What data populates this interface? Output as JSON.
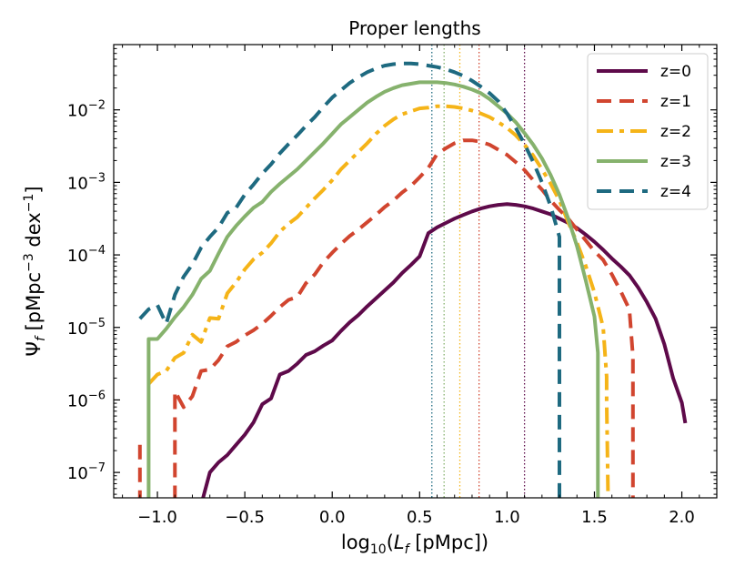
{
  "chart_data": {
    "type": "line",
    "title": "Proper lengths",
    "xlabel": "log10(Lf [pMpc])",
    "ylabel": "Ψf [pMpc−3 dex−1]",
    "xlim": [
      -1.25,
      2.2
    ],
    "ylim_log10": [
      -7.35,
      -1.1
    ],
    "x_ticks": [
      {
        "value": -1.0,
        "label": "−1.0"
      },
      {
        "value": -0.5,
        "label": "−0.5"
      },
      {
        "value": 0.0,
        "label": "0.0"
      },
      {
        "value": 0.5,
        "label": "0.5"
      },
      {
        "value": 1.0,
        "label": "1.0"
      },
      {
        "value": 1.5,
        "label": "1.5"
      },
      {
        "value": 2.0,
        "label": "2.0"
      }
    ],
    "y_ticks": [
      {
        "exp": -2,
        "label": "10−2"
      },
      {
        "exp": -3,
        "label": "10−3"
      },
      {
        "exp": -4,
        "label": "10−4"
      },
      {
        "exp": -5,
        "label": "10−5"
      },
      {
        "exp": -6,
        "label": "10−6"
      },
      {
        "exp": -7,
        "label": "10−7"
      }
    ],
    "legend_position": "top-right",
    "series": [
      {
        "name": "z=0",
        "color": "#5e0a4a",
        "style": "solid",
        "marker_x": 1.1,
        "points": [
          [
            -0.75,
            -7.7
          ],
          [
            -0.75,
            -7.45
          ],
          [
            -0.7,
            -7.0
          ],
          [
            -0.65,
            -6.86
          ],
          [
            -0.6,
            -6.76
          ],
          [
            -0.55,
            -6.62
          ],
          [
            -0.5,
            -6.48
          ],
          [
            -0.45,
            -6.31
          ],
          [
            -0.4,
            -6.06
          ],
          [
            -0.35,
            -5.98
          ],
          [
            -0.3,
            -5.65
          ],
          [
            -0.25,
            -5.6
          ],
          [
            -0.2,
            -5.5
          ],
          [
            -0.15,
            -5.38
          ],
          [
            -0.1,
            -5.33
          ],
          [
            -0.05,
            -5.25
          ],
          [
            0.0,
            -5.18
          ],
          [
            0.05,
            -5.05
          ],
          [
            0.1,
            -4.93
          ],
          [
            0.15,
            -4.83
          ],
          [
            0.2,
            -4.71
          ],
          [
            0.25,
            -4.6
          ],
          [
            0.3,
            -4.49
          ],
          [
            0.35,
            -4.38
          ],
          [
            0.4,
            -4.25
          ],
          [
            0.45,
            -4.14
          ],
          [
            0.5,
            -4.02
          ],
          [
            0.55,
            -3.7
          ],
          [
            0.6,
            -3.62
          ],
          [
            0.65,
            -3.56
          ],
          [
            0.7,
            -3.5
          ],
          [
            0.75,
            -3.45
          ],
          [
            0.8,
            -3.4
          ],
          [
            0.85,
            -3.36
          ],
          [
            0.9,
            -3.33
          ],
          [
            0.95,
            -3.31
          ],
          [
            1.0,
            -3.3
          ],
          [
            1.05,
            -3.31
          ],
          [
            1.1,
            -3.33
          ],
          [
            1.15,
            -3.36
          ],
          [
            1.2,
            -3.4
          ],
          [
            1.25,
            -3.44
          ],
          [
            1.3,
            -3.5
          ],
          [
            1.35,
            -3.56
          ],
          [
            1.4,
            -3.63
          ],
          [
            1.45,
            -3.72
          ],
          [
            1.5,
            -3.82
          ],
          [
            1.55,
            -3.93
          ],
          [
            1.6,
            -4.05
          ],
          [
            1.65,
            -4.16
          ],
          [
            1.7,
            -4.28
          ],
          [
            1.75,
            -4.45
          ],
          [
            1.8,
            -4.65
          ],
          [
            1.85,
            -4.88
          ],
          [
            1.9,
            -5.23
          ],
          [
            1.95,
            -5.7
          ],
          [
            2.0,
            -6.04
          ],
          [
            2.02,
            -6.32
          ]
        ]
      },
      {
        "name": "z=1",
        "color": "#d1452f",
        "style": "dashed",
        "marker_x": 0.84,
        "points": [
          [
            -1.1,
            -6.62
          ],
          [
            -1.1,
            -7.7
          ],
          [
            -0.9,
            -7.7
          ],
          [
            -0.9,
            -5.88
          ],
          [
            -0.85,
            -6.1
          ],
          [
            -0.8,
            -5.95
          ],
          [
            -0.75,
            -5.6
          ],
          [
            -0.7,
            -5.58
          ],
          [
            -0.65,
            -5.45
          ],
          [
            -0.6,
            -5.26
          ],
          [
            -0.55,
            -5.2
          ],
          [
            -0.5,
            -5.11
          ],
          [
            -0.45,
            -5.04
          ],
          [
            -0.4,
            -4.95
          ],
          [
            -0.35,
            -4.84
          ],
          [
            -0.3,
            -4.72
          ],
          [
            -0.25,
            -4.62
          ],
          [
            -0.2,
            -4.58
          ],
          [
            -0.15,
            -4.39
          ],
          [
            -0.1,
            -4.27
          ],
          [
            -0.05,
            -4.1
          ],
          [
            0.0,
            -3.97
          ],
          [
            0.05,
            -3.85
          ],
          [
            0.1,
            -3.74
          ],
          [
            0.15,
            -3.65
          ],
          [
            0.2,
            -3.55
          ],
          [
            0.25,
            -3.45
          ],
          [
            0.3,
            -3.34
          ],
          [
            0.35,
            -3.25
          ],
          [
            0.4,
            -3.14
          ],
          [
            0.45,
            -3.05
          ],
          [
            0.5,
            -2.93
          ],
          [
            0.55,
            -2.8
          ],
          [
            0.6,
            -2.61
          ],
          [
            0.65,
            -2.53
          ],
          [
            0.7,
            -2.46
          ],
          [
            0.75,
            -2.42
          ],
          [
            0.8,
            -2.42
          ],
          [
            0.85,
            -2.44
          ],
          [
            0.9,
            -2.48
          ],
          [
            0.95,
            -2.55
          ],
          [
            1.0,
            -2.62
          ],
          [
            1.05,
            -2.72
          ],
          [
            1.1,
            -2.83
          ],
          [
            1.15,
            -2.97
          ],
          [
            1.2,
            -3.1
          ],
          [
            1.25,
            -3.25
          ],
          [
            1.3,
            -3.38
          ],
          [
            1.35,
            -3.5
          ],
          [
            1.4,
            -3.65
          ],
          [
            1.45,
            -3.8
          ],
          [
            1.5,
            -3.95
          ],
          [
            1.55,
            -4.07
          ],
          [
            1.6,
            -4.27
          ],
          [
            1.65,
            -4.5
          ],
          [
            1.7,
            -4.75
          ],
          [
            1.72,
            -5.4
          ],
          [
            1.72,
            -5.87
          ],
          [
            1.72,
            -7.7
          ]
        ]
      },
      {
        "name": "z=2",
        "color": "#f5b418",
        "style": "dashdot",
        "marker_x": 0.73,
        "points": [
          [
            -1.05,
            -5.78
          ],
          [
            -1.0,
            -5.65
          ],
          [
            -0.95,
            -5.6
          ],
          [
            -0.9,
            -5.42
          ],
          [
            -0.85,
            -5.35
          ],
          [
            -0.8,
            -5.1
          ],
          [
            -0.75,
            -5.2
          ],
          [
            -0.7,
            -4.87
          ],
          [
            -0.65,
            -4.88
          ],
          [
            -0.6,
            -4.53
          ],
          [
            -0.55,
            -4.38
          ],
          [
            -0.5,
            -4.2
          ],
          [
            -0.45,
            -4.06
          ],
          [
            -0.4,
            -3.97
          ],
          [
            -0.35,
            -3.84
          ],
          [
            -0.3,
            -3.68
          ],
          [
            -0.25,
            -3.57
          ],
          [
            -0.2,
            -3.48
          ],
          [
            -0.15,
            -3.35
          ],
          [
            -0.1,
            -3.22
          ],
          [
            -0.05,
            -3.1
          ],
          [
            0.0,
            -2.97
          ],
          [
            0.05,
            -2.82
          ],
          [
            0.1,
            -2.7
          ],
          [
            0.15,
            -2.58
          ],
          [
            0.2,
            -2.46
          ],
          [
            0.25,
            -2.33
          ],
          [
            0.3,
            -2.22
          ],
          [
            0.35,
            -2.13
          ],
          [
            0.4,
            -2.06
          ],
          [
            0.45,
            -2.02
          ],
          [
            0.5,
            -1.98
          ],
          [
            0.55,
            -1.97
          ],
          [
            0.6,
            -1.95
          ],
          [
            0.65,
            -1.95
          ],
          [
            0.7,
            -1.96
          ],
          [
            0.75,
            -1.98
          ],
          [
            0.8,
            -2.01
          ],
          [
            0.85,
            -2.05
          ],
          [
            0.9,
            -2.1
          ],
          [
            0.95,
            -2.17
          ],
          [
            1.0,
            -2.25
          ],
          [
            1.05,
            -2.35
          ],
          [
            1.1,
            -2.48
          ],
          [
            1.15,
            -2.63
          ],
          [
            1.2,
            -2.82
          ],
          [
            1.25,
            -3.02
          ],
          [
            1.3,
            -3.25
          ],
          [
            1.35,
            -3.55
          ],
          [
            1.4,
            -3.83
          ],
          [
            1.45,
            -4.15
          ],
          [
            1.5,
            -4.52
          ],
          [
            1.55,
            -5.0
          ],
          [
            1.57,
            -5.68
          ],
          [
            1.57,
            -6.0
          ],
          [
            1.58,
            -7.7
          ]
        ]
      },
      {
        "name": "z=3",
        "color": "#86b26d",
        "style": "solid",
        "marker_x": 0.64,
        "points": [
          [
            -1.05,
            -7.7
          ],
          [
            -1.05,
            -5.16
          ],
          [
            -1.0,
            -5.16
          ],
          [
            -0.95,
            -5.02
          ],
          [
            -0.9,
            -4.86
          ],
          [
            -0.85,
            -4.72
          ],
          [
            -0.8,
            -4.55
          ],
          [
            -0.75,
            -4.33
          ],
          [
            -0.7,
            -4.22
          ],
          [
            -0.65,
            -3.98
          ],
          [
            -0.6,
            -3.75
          ],
          [
            -0.55,
            -3.6
          ],
          [
            -0.5,
            -3.47
          ],
          [
            -0.45,
            -3.35
          ],
          [
            -0.4,
            -3.27
          ],
          [
            -0.35,
            -3.13
          ],
          [
            -0.3,
            -3.02
          ],
          [
            -0.25,
            -2.92
          ],
          [
            -0.2,
            -2.82
          ],
          [
            -0.15,
            -2.7
          ],
          [
            -0.1,
            -2.58
          ],
          [
            -0.05,
            -2.46
          ],
          [
            0.0,
            -2.33
          ],
          [
            0.05,
            -2.2
          ],
          [
            0.1,
            -2.1
          ],
          [
            0.15,
            -2.0
          ],
          [
            0.2,
            -1.9
          ],
          [
            0.25,
            -1.82
          ],
          [
            0.3,
            -1.75
          ],
          [
            0.35,
            -1.7
          ],
          [
            0.4,
            -1.66
          ],
          [
            0.45,
            -1.64
          ],
          [
            0.5,
            -1.62
          ],
          [
            0.55,
            -1.62
          ],
          [
            0.6,
            -1.62
          ],
          [
            0.65,
            -1.63
          ],
          [
            0.7,
            -1.65
          ],
          [
            0.75,
            -1.68
          ],
          [
            0.8,
            -1.72
          ],
          [
            0.85,
            -1.77
          ],
          [
            0.9,
            -1.85
          ],
          [
            0.95,
            -1.95
          ],
          [
            1.0,
            -2.05
          ],
          [
            1.05,
            -2.17
          ],
          [
            1.1,
            -2.32
          ],
          [
            1.15,
            -2.48
          ],
          [
            1.2,
            -2.67
          ],
          [
            1.25,
            -2.9
          ],
          [
            1.3,
            -3.17
          ],
          [
            1.35,
            -3.5
          ],
          [
            1.4,
            -3.88
          ],
          [
            1.45,
            -4.35
          ],
          [
            1.5,
            -4.85
          ],
          [
            1.52,
            -5.35
          ],
          [
            1.52,
            -7.7
          ]
        ]
      },
      {
        "name": "z=4",
        "color": "#1e6a80",
        "style": "dashed",
        "marker_x": 0.57,
        "points": [
          [
            -1.1,
            -4.88
          ],
          [
            -1.05,
            -4.75
          ],
          [
            -1.0,
            -4.69
          ],
          [
            -0.95,
            -4.95
          ],
          [
            -0.9,
            -4.55
          ],
          [
            -0.85,
            -4.3
          ],
          [
            -0.8,
            -4.13
          ],
          [
            -0.75,
            -3.9
          ],
          [
            -0.7,
            -3.75
          ],
          [
            -0.65,
            -3.62
          ],
          [
            -0.6,
            -3.42
          ],
          [
            -0.55,
            -3.35
          ],
          [
            -0.5,
            -3.17
          ],
          [
            -0.45,
            -3.03
          ],
          [
            -0.4,
            -2.88
          ],
          [
            -0.35,
            -2.75
          ],
          [
            -0.3,
            -2.6
          ],
          [
            -0.25,
            -2.47
          ],
          [
            -0.2,
            -2.35
          ],
          [
            -0.15,
            -2.22
          ],
          [
            -0.1,
            -2.1
          ],
          [
            -0.05,
            -1.96
          ],
          [
            0.0,
            -1.83
          ],
          [
            0.05,
            -1.73
          ],
          [
            0.1,
            -1.63
          ],
          [
            0.15,
            -1.55
          ],
          [
            0.2,
            -1.48
          ],
          [
            0.25,
            -1.43
          ],
          [
            0.3,
            -1.39
          ],
          [
            0.35,
            -1.37
          ],
          [
            0.4,
            -1.36
          ],
          [
            0.45,
            -1.36
          ],
          [
            0.5,
            -1.37
          ],
          [
            0.55,
            -1.39
          ],
          [
            0.6,
            -1.41
          ],
          [
            0.65,
            -1.44
          ],
          [
            0.7,
            -1.48
          ],
          [
            0.75,
            -1.53
          ],
          [
            0.8,
            -1.6
          ],
          [
            0.85,
            -1.68
          ],
          [
            0.9,
            -1.77
          ],
          [
            0.95,
            -1.88
          ],
          [
            1.0,
            -2.05
          ],
          [
            1.05,
            -2.25
          ],
          [
            1.1,
            -2.47
          ],
          [
            1.15,
            -2.72
          ],
          [
            1.2,
            -3.0
          ],
          [
            1.25,
            -3.33
          ],
          [
            1.3,
            -3.75
          ],
          [
            1.3,
            -5.2
          ],
          [
            1.3,
            -7.7
          ]
        ]
      }
    ]
  }
}
